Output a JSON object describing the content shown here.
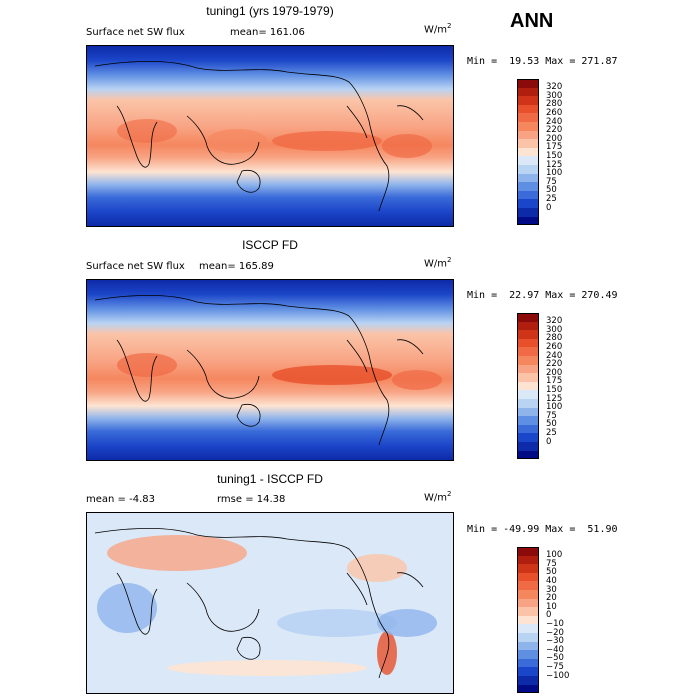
{
  "season": "ANN",
  "units_base": "W/m",
  "units_exp": "2",
  "panels": [
    {
      "title": "tuning1 (yrs 1979-1979)",
      "left_label": "Surface net SW flux",
      "mid_label": "mean= 161.06",
      "minmax": "Min =  19.53 Max = 271.87",
      "levels": [
        "320",
        "300",
        "280",
        "260",
        "240",
        "220",
        "200",
        "175",
        "150",
        "125",
        "100",
        "75",
        "50",
        "25",
        "0"
      ],
      "colors": [
        "#8b0a0a",
        "#b01e10",
        "#d03418",
        "#e7502a",
        "#f06a45",
        "#f5875f",
        "#f8a484",
        "#fbc4a8",
        "#fde4d2",
        "#dbe8f7",
        "#b9d3f3",
        "#8fb4ec",
        "#5f8fe3",
        "#3a6bd9",
        "#1c46c9",
        "#0d2aa8",
        "#000b85"
      ]
    },
    {
      "title": "ISCCP FD",
      "left_label": "Surface net SW flux",
      "mid_label": "mean= 165.89",
      "minmax": "Min =  22.97 Max = 270.49",
      "levels": [
        "320",
        "300",
        "280",
        "260",
        "240",
        "220",
        "200",
        "175",
        "150",
        "125",
        "100",
        "75",
        "50",
        "25",
        "0"
      ],
      "colors": [
        "#8b0a0a",
        "#b01e10",
        "#d03418",
        "#e7502a",
        "#f06a45",
        "#f5875f",
        "#f8a484",
        "#fbc4a8",
        "#fde4d2",
        "#dbe8f7",
        "#b9d3f3",
        "#8fb4ec",
        "#5f8fe3",
        "#3a6bd9",
        "#1c46c9",
        "#0d2aa8",
        "#000b85"
      ]
    },
    {
      "title": "tuning1 - ISCCP FD",
      "left_label": "mean =   -4.83",
      "mid_label": "rmse =   14.38",
      "minmax": "Min = -49.99 Max =  51.90",
      "levels": [
        "100",
        "75",
        "50",
        "40",
        "30",
        "20",
        "10",
        "0",
        "−10",
        "−20",
        "−30",
        "−40",
        "−50",
        "−75",
        "−100"
      ],
      "colors": [
        "#8b0a0a",
        "#b01e10",
        "#d03418",
        "#e7502a",
        "#f06a45",
        "#f5875f",
        "#f8a484",
        "#fbc4a8",
        "#fde4d2",
        "#dbe8f7",
        "#b9d3f3",
        "#8fb4ec",
        "#5f8fe3",
        "#3a6bd9",
        "#1c46c9",
        "#0d2aa8",
        "#000b85"
      ]
    }
  ]
}
